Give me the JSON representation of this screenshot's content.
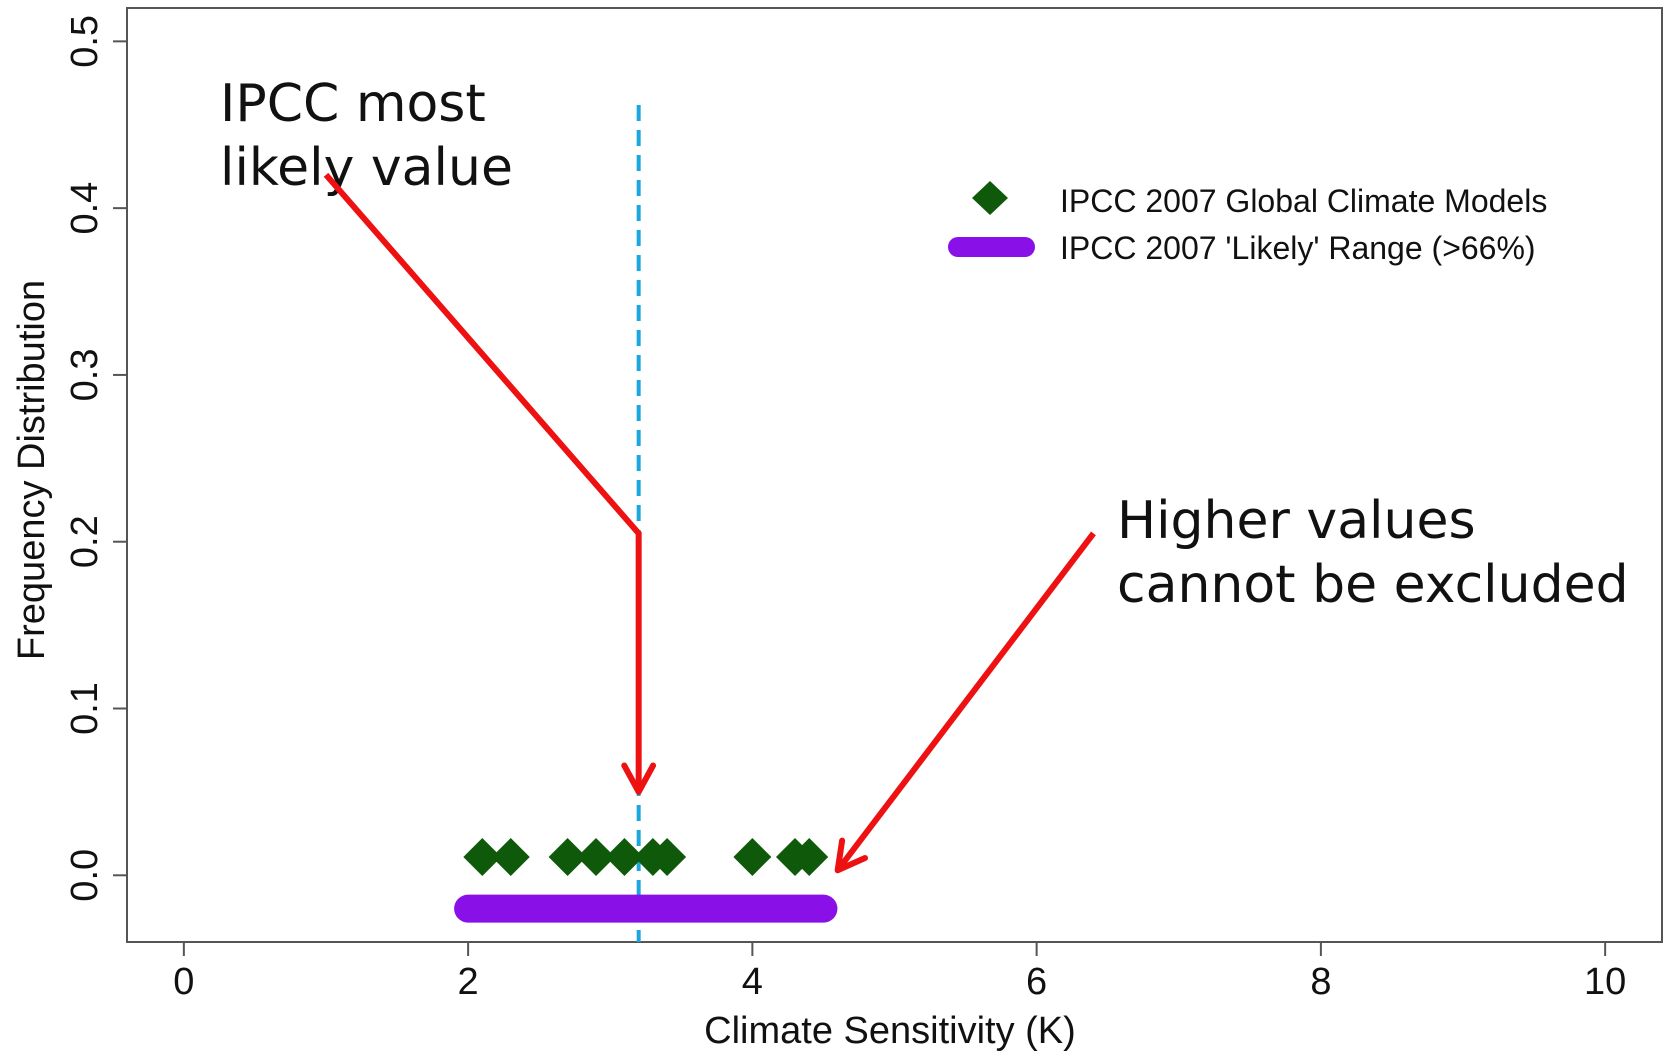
{
  "chart_data": {
    "type": "scatter",
    "title": "",
    "xlabel": "Climate Sensitivity (K)",
    "ylabel": "Frequency Distribution",
    "xlim": [
      -0.4,
      10.4
    ],
    "ylim": [
      -0.04,
      0.52
    ],
    "x_ticks": [
      0,
      2,
      4,
      6,
      8,
      10
    ],
    "x_tick_labels": [
      "0",
      "2",
      "4",
      "6",
      "8",
      "10"
    ],
    "y_ticks": [
      0.0,
      0.1,
      0.2,
      0.3,
      0.4,
      0.5
    ],
    "y_tick_labels": [
      "0.0",
      "0.1",
      "0.2",
      "0.3",
      "0.4",
      "0.5"
    ],
    "grid": false,
    "legend_position": "upper-right",
    "series": [
      {
        "name": "IPCC 2007 Global Climate Models",
        "marker": "diamond",
        "color": "#0f5a0a",
        "x": [
          2.1,
          2.3,
          2.7,
          2.9,
          3.1,
          3.3,
          3.4,
          4.0,
          4.3,
          4.4
        ],
        "y": [
          0.011,
          0.011,
          0.011,
          0.011,
          0.011,
          0.011,
          0.011,
          0.011,
          0.011,
          0.011
        ]
      },
      {
        "name": "IPCC 2007 'Likely' Range (>66%)",
        "marker": "range-bar",
        "color": "#8a10e8",
        "range": [
          2.0,
          4.5
        ],
        "y": -0.02
      }
    ],
    "reference_lines": [
      {
        "axis": "x",
        "value": 3.2,
        "style": "dashed",
        "color": "#1aa7e0"
      }
    ],
    "annotations": [
      {
        "text_lines": [
          "IPCC most",
          "likely value"
        ],
        "color": "#ee1111",
        "arrow_path": [
          [
            1.0,
            0.42
          ],
          [
            3.2,
            0.205
          ],
          [
            3.2,
            0.05
          ]
        ]
      },
      {
        "text_lines": [
          "Higher values",
          "cannot be excluded"
        ],
        "color": "#ee1111",
        "arrow_path": [
          [
            6.4,
            0.205
          ],
          [
            4.6,
            0.003
          ]
        ]
      }
    ]
  }
}
